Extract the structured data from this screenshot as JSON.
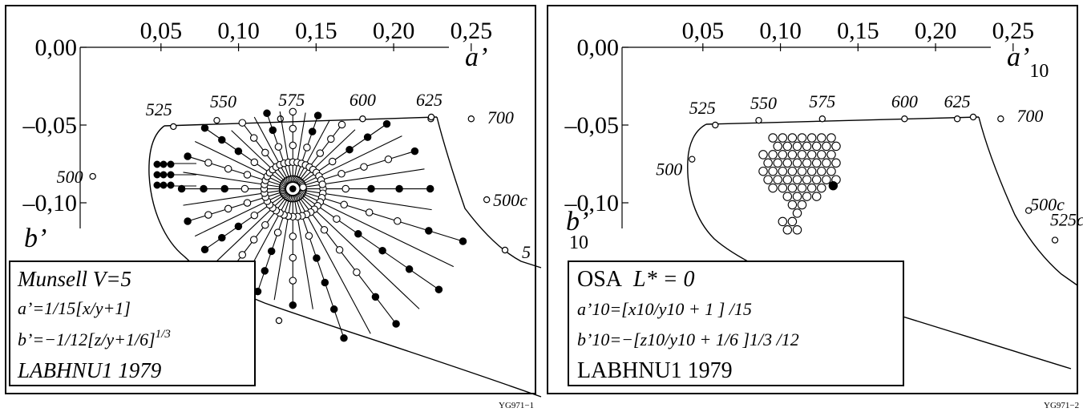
{
  "charts": [
    {
      "x_ticks": [
        "0,05",
        "0,10",
        "0,15",
        "0,20",
        "0,25"
      ],
      "y_ticks": [
        "0,00",
        "–0,05",
        "–0,10"
      ],
      "x_axis_label": "a’",
      "y_axis_label": "b’",
      "locus_labels": [
        "500",
        "525",
        "550",
        "575",
        "600",
        "625",
        "700",
        "500c",
        "5"
      ],
      "legend": {
        "title": "Munsell V=5",
        "line1": "a’=1/15[x/y+1]",
        "line2_main": "b’=−1/12[z/y+1/6]",
        "line2_sup": "1/3",
        "line3": "LABHNU1 1979"
      },
      "code": "YG971−1"
    },
    {
      "x_ticks": [
        "0,05",
        "0,10",
        "0,15",
        "0,20",
        "0,25"
      ],
      "y_ticks": [
        "0,00",
        "–0,05",
        "–0,10"
      ],
      "x_axis_label": "a’",
      "x_axis_label_sub": "10",
      "y_axis_label": "b’",
      "y_axis_label_sub": "10",
      "locus_labels": [
        "500",
        "525",
        "550",
        "575",
        "600",
        "625",
        "700",
        "500c",
        "525c"
      ],
      "legend": {
        "title_a": "OSA",
        "title_b": "L* = 0",
        "line1": "a’10=[x10/y10 + 1 ] /15",
        "line2": "b’10=−[z10/y10 + 1/6 ]1/3 /12",
        "line3": "LABHNU1 1979"
      },
      "code": "YG971−2"
    }
  ],
  "chart_data": [
    {
      "type": "scatter",
      "title": "Munsell V=5",
      "xlabel": "a’",
      "ylabel": "b’",
      "xlim": [
        -0.02,
        0.28
      ],
      "ylim": [
        -0.135,
        0.0
      ],
      "spectral_locus": [
        {
          "label": "500",
          "x": 0.006,
          "y": -0.083
        },
        {
          "label": "525",
          "x": 0.058,
          "y": -0.051
        },
        {
          "label": "550",
          "x": 0.086,
          "y": -0.047
        },
        {
          "label": "575",
          "x": 0.127,
          "y": -0.046
        },
        {
          "label": "600",
          "x": 0.18,
          "y": -0.046
        },
        {
          "label": "625",
          "x": 0.224,
          "y": -0.046
        },
        {
          "label": "700",
          "x": 0.25,
          "y": -0.046
        }
      ],
      "purple_line_points": [
        {
          "label": "500c",
          "x": 0.26,
          "y": -0.098
        }
      ],
      "white_point": {
        "x": 0.135,
        "y": -0.091
      },
      "grid": {
        "hue_lines": 40,
        "chroma_rings": [
          2,
          4,
          6,
          8,
          10,
          12,
          14
        ]
      }
    },
    {
      "type": "scatter",
      "title": "OSA L* = 0",
      "xlabel": "a’10",
      "ylabel": "b’10",
      "xlim": [
        -0.02,
        0.28
      ],
      "ylim": [
        -0.135,
        0.0
      ],
      "spectral_locus": [
        {
          "label": "500",
          "x": 0.043,
          "y": -0.072
        },
        {
          "label": "525",
          "x": 0.058,
          "y": -0.05
        },
        {
          "label": "550",
          "x": 0.086,
          "y": -0.047
        },
        {
          "label": "575",
          "x": 0.127,
          "y": -0.046
        },
        {
          "label": "600",
          "x": 0.18,
          "y": -0.046
        },
        {
          "label": "625",
          "x": 0.214,
          "y": -0.046
        },
        {
          "label": "700",
          "x": 0.242,
          "y": -0.046
        }
      ],
      "purple_line_points": [
        {
          "label": "500c",
          "x": 0.26,
          "y": -0.105
        },
        {
          "label": "525c",
          "x": 0.277,
          "y": -0.124
        }
      ],
      "white_point": {
        "x": 0.134,
        "y": -0.089
      },
      "sample_grid": {
        "rows": 12,
        "columns": 8,
        "spacing": 0.0064
      }
    }
  ]
}
